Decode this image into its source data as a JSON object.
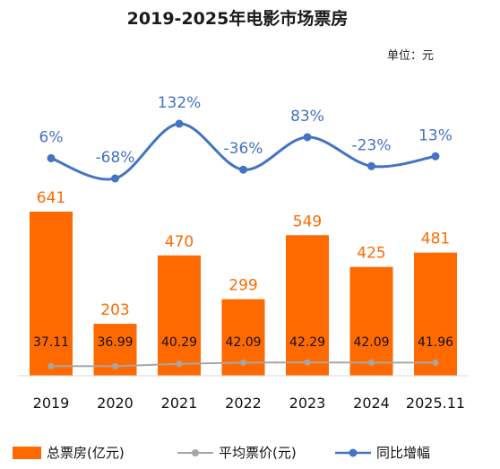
{
  "chart_data": {
    "type": "bar",
    "title": "2019-2025年电影市场票房",
    "unit_note": "单位：元",
    "categories": [
      "2019",
      "2020",
      "2021",
      "2022",
      "2023",
      "2024",
      "2025.11"
    ],
    "series": [
      {
        "name": "总票房(亿元)",
        "kind": "bar",
        "values": [
          641,
          203,
          470,
          299,
          549,
          425,
          481
        ],
        "color": "#ff6a00"
      },
      {
        "name": "平均票价(元)",
        "kind": "line",
        "values": [
          37.11,
          36.99,
          40.29,
          42.09,
          42.29,
          42.09,
          41.96
        ],
        "color": "#a6a6a6"
      },
      {
        "name": "同比增幅",
        "kind": "line",
        "values": [
          6,
          -68,
          132,
          -36,
          83,
          -23,
          13
        ],
        "value_labels": [
          "6%",
          "-68%",
          "132%",
          "-36%",
          "83%",
          "-23%",
          "13%"
        ],
        "color": "#4472c4"
      }
    ],
    "bar_label_color": "#ff6a00",
    "axis_color": "#d9d9d9"
  }
}
